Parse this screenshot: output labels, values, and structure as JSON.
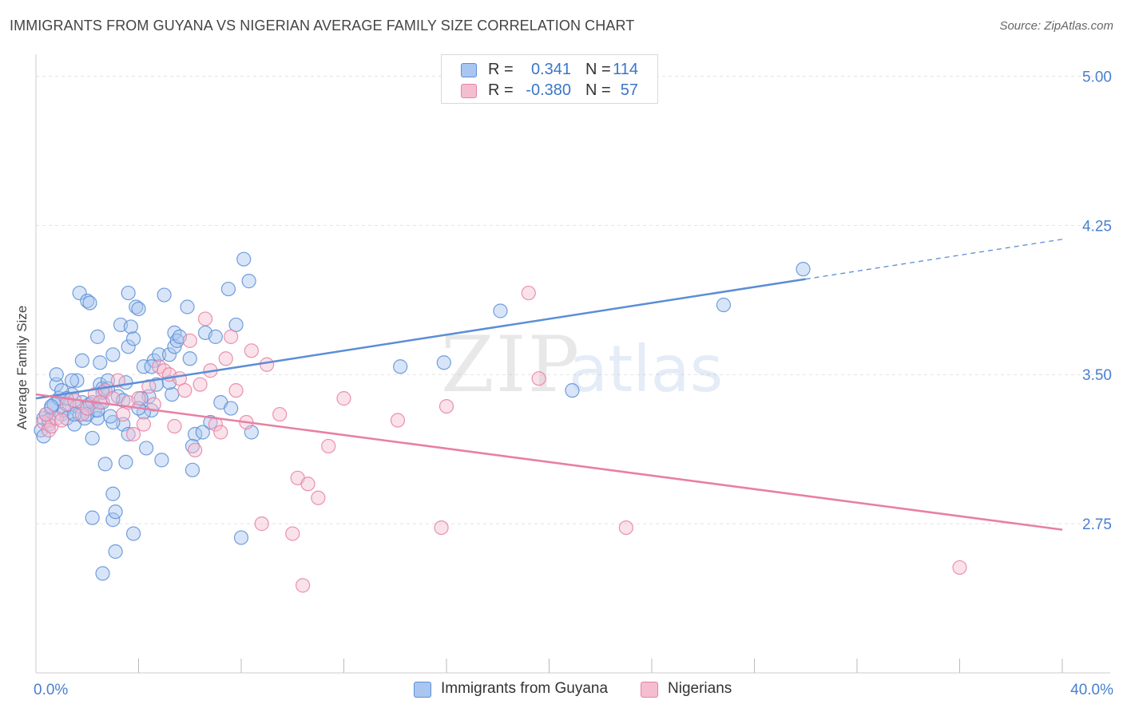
{
  "title": "IMMIGRANTS FROM GUYANA VS NIGERIAN AVERAGE FAMILY SIZE CORRELATION CHART",
  "source": "Source: ZipAtlas.com",
  "watermark": {
    "zip": "ZIP",
    "atlas": "atlas"
  },
  "legend_top": [
    {
      "r_label": "R =",
      "r_value": "0.341",
      "n_label": "N =",
      "n_value": "114",
      "color": "#5b8ed6"
    },
    {
      "r_label": "R =",
      "r_value": "-0.380",
      "n_label": "N =",
      "n_value": "57",
      "color": "#e87fa3"
    }
  ],
  "chart_data": {
    "type": "scatter",
    "xlabel": "",
    "ylabel": "Average Family Size",
    "xlim": [
      0,
      40
    ],
    "ylim": [
      2.0,
      5.07
    ],
    "x_tick_labels": [
      {
        "value": 0,
        "label": "0.0%"
      },
      {
        "value": 40,
        "label": "40.0%"
      }
    ],
    "x_minor_ticks": [
      4,
      8,
      12,
      16,
      20,
      24,
      28,
      32,
      36,
      40
    ],
    "y_ticks": [
      {
        "value": 5.0,
        "label": "5.00"
      },
      {
        "value": 4.25,
        "label": "4.25"
      },
      {
        "value": 3.5,
        "label": "3.50"
      },
      {
        "value": 2.75,
        "label": "2.75"
      }
    ],
    "grid": "horizontal dashed",
    "legend_position": "bottom-center",
    "series": [
      {
        "name": "Immigrants from Guyana",
        "color": "#5b8ed6",
        "fill": "#a8c6ef",
        "trend": {
          "x": [
            0,
            30
          ],
          "y": [
            3.38,
            3.98
          ],
          "dashed_extension": {
            "x": [
              30,
              40
            ],
            "y": [
              3.98,
              4.18
            ]
          }
        },
        "points": [
          [
            0.2,
            3.22
          ],
          [
            0.3,
            3.28
          ],
          [
            0.4,
            3.3
          ],
          [
            0.5,
            3.25
          ],
          [
            0.6,
            3.33
          ],
          [
            0.7,
            3.35
          ],
          [
            0.8,
            3.45
          ],
          [
            0.9,
            3.38
          ],
          [
            1.0,
            3.3
          ],
          [
            1.1,
            3.32
          ],
          [
            1.2,
            3.28
          ],
          [
            1.3,
            3.35
          ],
          [
            1.4,
            3.4
          ],
          [
            1.5,
            3.25
          ],
          [
            1.6,
            3.47
          ],
          [
            1.7,
            3.3
          ],
          [
            1.8,
            3.36
          ],
          [
            1.9,
            3.28
          ],
          [
            2.0,
            3.33
          ],
          [
            2.1,
            3.35
          ],
          [
            2.2,
            3.18
          ],
          [
            2.3,
            3.32
          ],
          [
            2.4,
            3.28
          ],
          [
            2.5,
            3.45
          ],
          [
            2.6,
            3.36
          ],
          [
            2.7,
            3.05
          ],
          [
            0.3,
            3.19
          ],
          [
            0.5,
            3.27
          ],
          [
            0.6,
            3.34
          ],
          [
            0.8,
            3.5
          ],
          [
            1.0,
            3.42
          ],
          [
            1.2,
            3.38
          ],
          [
            1.4,
            3.47
          ],
          [
            1.6,
            3.34
          ],
          [
            1.8,
            3.57
          ],
          [
            2.0,
            3.3
          ],
          [
            2.2,
            3.36
          ],
          [
            2.4,
            3.32
          ],
          [
            2.6,
            3.43
          ],
          [
            2.8,
            3.43
          ],
          [
            1.7,
            3.91
          ],
          [
            2.0,
            3.87
          ],
          [
            2.1,
            3.86
          ],
          [
            2.4,
            3.69
          ],
          [
            2.5,
            3.56
          ],
          [
            2.6,
            3.41
          ],
          [
            2.8,
            3.47
          ],
          [
            3.0,
            3.6
          ],
          [
            3.2,
            3.39
          ],
          [
            3.5,
            3.46
          ],
          [
            3.3,
            3.75
          ],
          [
            3.6,
            3.64
          ],
          [
            3.7,
            3.74
          ],
          [
            3.8,
            3.68
          ],
          [
            3.4,
            3.25
          ],
          [
            3.6,
            3.2
          ],
          [
            3.5,
            3.06
          ],
          [
            3.0,
            3.26
          ],
          [
            2.9,
            3.29
          ],
          [
            3.9,
            3.84
          ],
          [
            4.0,
            3.83
          ],
          [
            4.2,
            3.54
          ],
          [
            4.4,
            3.39
          ],
          [
            4.5,
            3.32
          ],
          [
            4.6,
            3.57
          ],
          [
            4.8,
            3.6
          ],
          [
            3.4,
            3.37
          ],
          [
            3.6,
            3.91
          ],
          [
            4.1,
            3.38
          ],
          [
            4.2,
            3.31
          ],
          [
            4.0,
            3.33
          ],
          [
            4.3,
            3.13
          ],
          [
            4.5,
            3.54
          ],
          [
            4.7,
            3.45
          ],
          [
            4.9,
            3.07
          ],
          [
            5.0,
            3.9
          ],
          [
            5.2,
            3.6
          ],
          [
            5.3,
            3.4
          ],
          [
            5.4,
            3.64
          ],
          [
            5.4,
            3.71
          ],
          [
            5.2,
            3.46
          ],
          [
            5.5,
            3.67
          ],
          [
            5.9,
            3.84
          ],
          [
            6.1,
            3.02
          ],
          [
            6.2,
            3.2
          ],
          [
            6.1,
            3.14
          ],
          [
            5.6,
            3.69
          ],
          [
            6.0,
            3.58
          ],
          [
            6.6,
            3.71
          ],
          [
            6.8,
            3.26
          ],
          [
            7.0,
            3.69
          ],
          [
            7.2,
            3.36
          ],
          [
            7.5,
            3.93
          ],
          [
            7.6,
            3.33
          ],
          [
            7.8,
            3.75
          ],
          [
            8.1,
            4.08
          ],
          [
            8.3,
            3.97
          ],
          [
            8.4,
            3.21
          ],
          [
            8.0,
            2.68
          ],
          [
            6.5,
            3.21
          ],
          [
            3.0,
            2.77
          ],
          [
            3.1,
            2.81
          ],
          [
            3.0,
            2.9
          ],
          [
            3.1,
            2.61
          ],
          [
            2.6,
            2.5
          ],
          [
            2.2,
            2.78
          ],
          [
            3.8,
            2.7
          ],
          [
            1.5,
            3.3
          ],
          [
            14.2,
            3.54
          ],
          [
            15.9,
            3.56
          ],
          [
            18.1,
            3.82
          ],
          [
            20.9,
            3.42
          ],
          [
            26.8,
            3.85
          ],
          [
            29.9,
            4.03
          ]
        ]
      },
      {
        "name": "Nigerians",
        "color": "#e87fa3",
        "fill": "#f5bed0",
        "trend": {
          "x": [
            0,
            40
          ],
          "y": [
            3.4,
            2.72
          ]
        },
        "points": [
          [
            0.3,
            3.26
          ],
          [
            0.5,
            3.22
          ],
          [
            0.6,
            3.24
          ],
          [
            0.8,
            3.28
          ],
          [
            0.4,
            3.3
          ],
          [
            1.0,
            3.27
          ],
          [
            1.2,
            3.35
          ],
          [
            1.5,
            3.37
          ],
          [
            1.8,
            3.3
          ],
          [
            2.0,
            3.33
          ],
          [
            2.3,
            3.4
          ],
          [
            2.5,
            3.36
          ],
          [
            2.7,
            3.42
          ],
          [
            3.0,
            3.38
          ],
          [
            3.2,
            3.47
          ],
          [
            3.4,
            3.3
          ],
          [
            3.6,
            3.36
          ],
          [
            3.8,
            3.2
          ],
          [
            4.0,
            3.38
          ],
          [
            4.2,
            3.25
          ],
          [
            4.4,
            3.44
          ],
          [
            4.6,
            3.35
          ],
          [
            4.8,
            3.54
          ],
          [
            5.0,
            3.52
          ],
          [
            5.2,
            3.5
          ],
          [
            5.4,
            3.24
          ],
          [
            5.6,
            3.48
          ],
          [
            5.8,
            3.42
          ],
          [
            6.0,
            3.67
          ],
          [
            6.2,
            3.12
          ],
          [
            6.4,
            3.45
          ],
          [
            6.6,
            3.78
          ],
          [
            6.8,
            3.52
          ],
          [
            7.0,
            3.25
          ],
          [
            7.2,
            3.21
          ],
          [
            7.4,
            3.58
          ],
          [
            7.6,
            3.69
          ],
          [
            7.8,
            3.42
          ],
          [
            8.2,
            3.26
          ],
          [
            8.4,
            3.62
          ],
          [
            9.0,
            3.55
          ],
          [
            9.5,
            3.3
          ],
          [
            10.2,
            2.98
          ],
          [
            10.6,
            2.95
          ],
          [
            11.0,
            2.88
          ],
          [
            11.4,
            3.14
          ],
          [
            12.0,
            3.38
          ],
          [
            14.1,
            3.27
          ],
          [
            16.0,
            3.34
          ],
          [
            19.2,
            3.91
          ],
          [
            19.6,
            3.48
          ],
          [
            8.8,
            2.75
          ],
          [
            10.0,
            2.7
          ],
          [
            15.8,
            2.73
          ],
          [
            23.0,
            2.73
          ],
          [
            10.4,
            2.44
          ],
          [
            36.0,
            2.53
          ]
        ]
      }
    ]
  }
}
